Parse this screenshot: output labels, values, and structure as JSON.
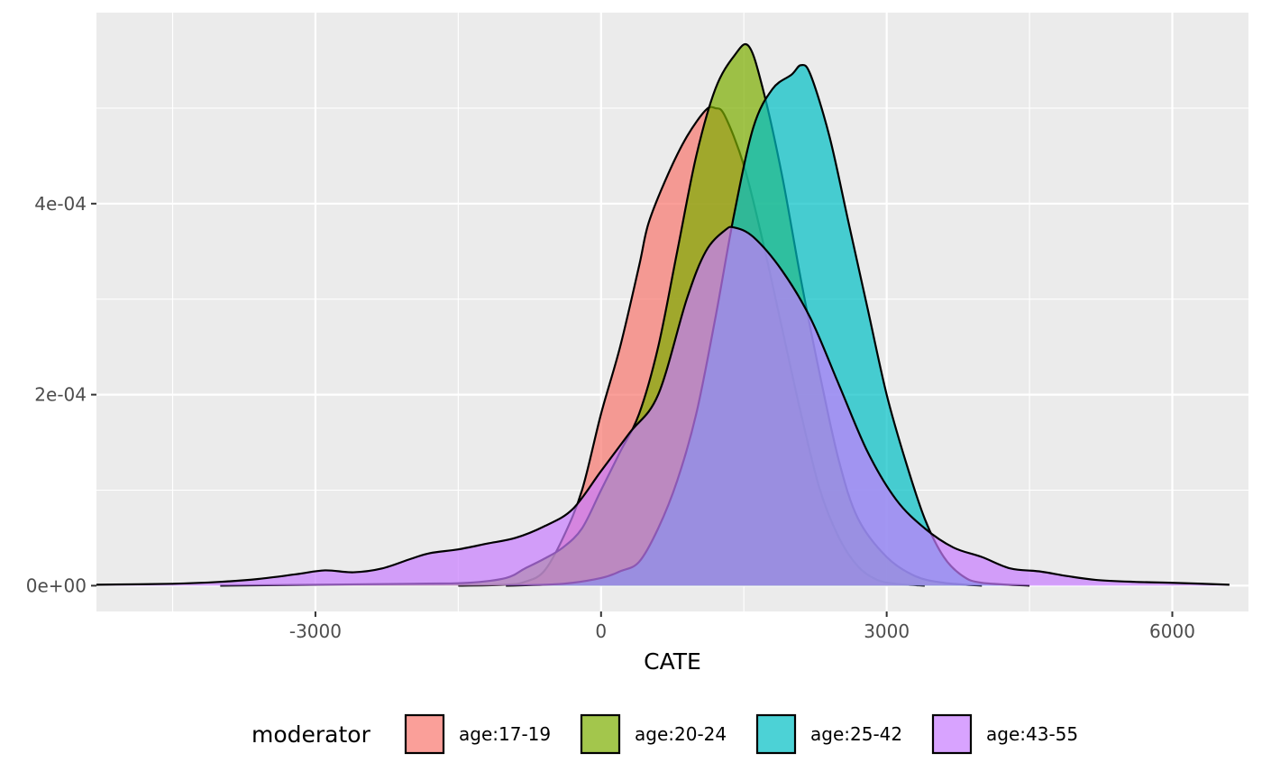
{
  "chart_data": {
    "type": "area",
    "xlabel": "CATE",
    "ylabel": "",
    "xlim": [
      -5300,
      6800
    ],
    "ylim": [
      -2.7e-05,
      0.0006
    ],
    "x_ticks": [
      -3000,
      0,
      3000,
      6000
    ],
    "x_tick_labels": [
      "-3000",
      "0",
      "3000",
      "6000"
    ],
    "y_ticks": [
      0,
      0.0002,
      0.0004
    ],
    "y_tick_labels": [
      "0e+00",
      "2e-04",
      "4e-04"
    ],
    "grid": true,
    "legend": {
      "title": "moderator",
      "position": "bottom"
    },
    "series": [
      {
        "name": "age:17-19",
        "color": "#F8766D",
        "points": [
          [
            -1500,
            0
          ],
          [
            -1000,
            1e-06
          ],
          [
            -800,
            4e-06
          ],
          [
            -600,
            1.5e-05
          ],
          [
            -400,
            5e-05
          ],
          [
            -200,
            0.0001
          ],
          [
            0,
            0.00018
          ],
          [
            200,
            0.00025
          ],
          [
            400,
            0.000335
          ],
          [
            500,
            0.00038
          ],
          [
            700,
            0.00043
          ],
          [
            900,
            0.00047
          ],
          [
            1100,
            0.000498
          ],
          [
            1200,
            0.0005
          ],
          [
            1300,
            0.000492
          ],
          [
            1500,
            0.00044
          ],
          [
            1700,
            0.00036
          ],
          [
            1900,
            0.00027
          ],
          [
            2100,
            0.00018
          ],
          [
            2300,
            0.0001
          ],
          [
            2500,
            5e-05
          ],
          [
            2700,
            2e-05
          ],
          [
            2900,
            6e-06
          ],
          [
            3100,
            2e-06
          ],
          [
            3400,
            0
          ]
        ]
      },
      {
        "name": "age:20-24",
        "color": "#7CAE00",
        "points": [
          [
            -4000,
            0
          ],
          [
            -2000,
            2e-06
          ],
          [
            -1400,
            3e-06
          ],
          [
            -1000,
            8e-06
          ],
          [
            -800,
            1.8e-05
          ],
          [
            -600,
            2.8e-05
          ],
          [
            -400,
            4e-05
          ],
          [
            -200,
            6e-05
          ],
          [
            0,
            0.0001
          ],
          [
            200,
            0.00014
          ],
          [
            400,
            0.00018
          ],
          [
            600,
            0.00025
          ],
          [
            800,
            0.00035
          ],
          [
            1000,
            0.00045
          ],
          [
            1200,
            0.00052
          ],
          [
            1400,
            0.000555
          ],
          [
            1550,
            0.000565
          ],
          [
            1700,
            0.00052
          ],
          [
            1900,
            0.00043
          ],
          [
            2100,
            0.00032
          ],
          [
            2300,
            0.00022
          ],
          [
            2500,
            0.00013
          ],
          [
            2700,
            7e-05
          ],
          [
            3000,
            3e-05
          ],
          [
            3300,
            1e-05
          ],
          [
            3600,
            3e-06
          ],
          [
            4000,
            0
          ]
        ]
      },
      {
        "name": "age:25-42",
        "color": "#00BFC4",
        "points": [
          [
            -1000,
            0
          ],
          [
            -400,
            2e-06
          ],
          [
            0,
            8e-06
          ],
          [
            200,
            1.5e-05
          ],
          [
            400,
            2.5e-05
          ],
          [
            600,
            6e-05
          ],
          [
            800,
            0.00011
          ],
          [
            1000,
            0.00018
          ],
          [
            1200,
            0.00028
          ],
          [
            1400,
            0.00039
          ],
          [
            1600,
            0.00048
          ],
          [
            1800,
            0.00052
          ],
          [
            2000,
            0.000535
          ],
          [
            2100,
            0.000545
          ],
          [
            2200,
            0.000535
          ],
          [
            2400,
            0.00047
          ],
          [
            2600,
            0.00038
          ],
          [
            2800,
            0.00029
          ],
          [
            3000,
            0.0002
          ],
          [
            3200,
            0.00013
          ],
          [
            3400,
            7e-05
          ],
          [
            3600,
            3e-05
          ],
          [
            3800,
            1e-05
          ],
          [
            4000,
            3e-06
          ],
          [
            4500,
            0
          ]
        ]
      },
      {
        "name": "age:43-55",
        "color": "#C77CFF",
        "points": [
          [
            -5300,
            1e-06
          ],
          [
            -4500,
            2e-06
          ],
          [
            -4000,
            4e-06
          ],
          [
            -3600,
            7e-06
          ],
          [
            -3200,
            1.2e-05
          ],
          [
            -2900,
            1.6e-05
          ],
          [
            -2600,
            1.4e-05
          ],
          [
            -2300,
            1.8e-05
          ],
          [
            -2000,
            2.8e-05
          ],
          [
            -1800,
            3.4e-05
          ],
          [
            -1500,
            3.8e-05
          ],
          [
            -1200,
            4.4e-05
          ],
          [
            -900,
            5e-05
          ],
          [
            -600,
            6.2e-05
          ],
          [
            -300,
            8e-05
          ],
          [
            0,
            0.00012
          ],
          [
            300,
            0.00016
          ],
          [
            600,
            0.0002
          ],
          [
            900,
            0.0003
          ],
          [
            1100,
            0.00035
          ],
          [
            1300,
            0.000372
          ],
          [
            1400,
            0.000375
          ],
          [
            1600,
            0.000365
          ],
          [
            1900,
            0.00033
          ],
          [
            2200,
            0.00028
          ],
          [
            2500,
            0.00021
          ],
          [
            2800,
            0.00014
          ],
          [
            3100,
            9e-05
          ],
          [
            3400,
            6e-05
          ],
          [
            3700,
            4e-05
          ],
          [
            4000,
            3e-05
          ],
          [
            4300,
            1.8e-05
          ],
          [
            4600,
            1.5e-05
          ],
          [
            4900,
            1e-05
          ],
          [
            5200,
            6e-06
          ],
          [
            5600,
            4e-06
          ],
          [
            6000,
            3e-06
          ],
          [
            6600,
            1e-06
          ]
        ]
      }
    ]
  }
}
